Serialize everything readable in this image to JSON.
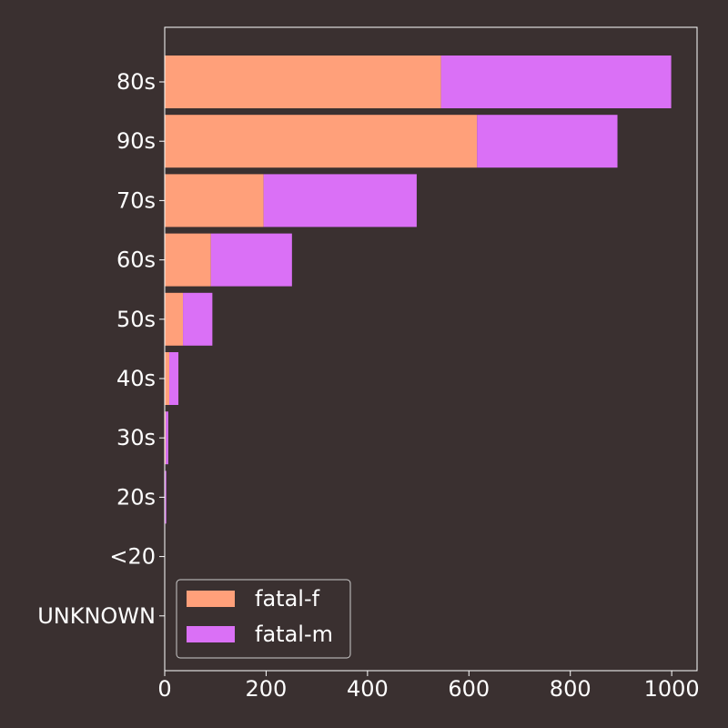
{
  "chart_data": {
    "type": "bar",
    "orientation": "horizontal",
    "stacked": true,
    "categories": [
      "80s",
      "90s",
      "70s",
      "60s",
      "50s",
      "40s",
      "30s",
      "20s",
      "<20",
      "UNKNOWN"
    ],
    "series": [
      {
        "name": "fatal-f",
        "color": "#ffa07a",
        "values": [
          545,
          616,
          195,
          91,
          36,
          9,
          2,
          1,
          0,
          0
        ]
      },
      {
        "name": "fatal-m",
        "color": "#da70f6",
        "values": [
          454,
          277,
          302,
          160,
          58,
          18,
          5,
          2,
          0,
          0
        ]
      }
    ],
    "xticks": [
      0,
      200,
      400,
      600,
      800,
      1000
    ],
    "xlim": [
      0,
      1050
    ],
    "grid": false,
    "legend_position": "lower-left",
    "background": "#3a3030",
    "axis_color": "#ffffff"
  }
}
